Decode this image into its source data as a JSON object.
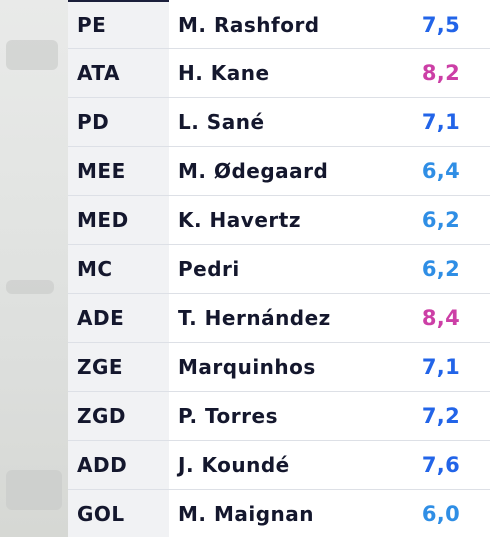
{
  "colors": {
    "rating_blue": "#2264e8",
    "rating_pink": "#cc3fa6",
    "rating_light_blue": "#2f8ee5"
  },
  "players": [
    {
      "position": "PE",
      "name": "M. Rashford",
      "rating": "7,5",
      "rating_color": "#2264e8"
    },
    {
      "position": "ATA",
      "name": "H. Kane",
      "rating": "8,2",
      "rating_color": "#cc3fa6"
    },
    {
      "position": "PD",
      "name": "L. Sané",
      "rating": "7,1",
      "rating_color": "#2264e8"
    },
    {
      "position": "MEE",
      "name": "M. Ødegaard",
      "rating": "6,4",
      "rating_color": "#2f8ee5"
    },
    {
      "position": "MED",
      "name": "K. Havertz",
      "rating": "6,2",
      "rating_color": "#2f8ee5"
    },
    {
      "position": "MC",
      "name": "Pedri",
      "rating": "6,2",
      "rating_color": "#2f8ee5"
    },
    {
      "position": "ADE",
      "name": "T. Hernández",
      "rating": "8,4",
      "rating_color": "#cc3fa6"
    },
    {
      "position": "ZGE",
      "name": "Marquinhos",
      "rating": "7,1",
      "rating_color": "#2264e8"
    },
    {
      "position": "ZGD",
      "name": "P. Torres",
      "rating": "7,2",
      "rating_color": "#2264e8"
    },
    {
      "position": "ADD",
      "name": "J. Koundé",
      "rating": "7,6",
      "rating_color": "#2264e8"
    },
    {
      "position": "GOL",
      "name": "M. Maignan",
      "rating": "6,0",
      "rating_color": "#2f8ee5"
    }
  ]
}
